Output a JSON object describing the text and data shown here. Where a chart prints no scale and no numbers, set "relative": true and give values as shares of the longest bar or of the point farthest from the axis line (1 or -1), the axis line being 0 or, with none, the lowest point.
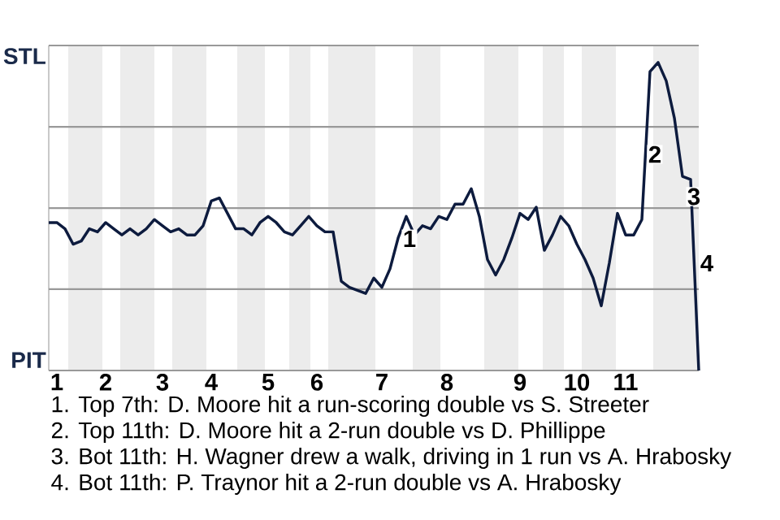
{
  "chart_data": {
    "type": "line",
    "relative": true,
    "categories": [
      null,
      "1",
      null,
      null,
      null,
      null,
      null,
      "2",
      null,
      null,
      null,
      null,
      null,
      null,
      "3",
      null,
      null,
      null,
      null,
      null,
      "4",
      null,
      null,
      null,
      null,
      null,
      null,
      "5",
      null,
      null,
      null,
      null,
      null,
      "6",
      null,
      null,
      null,
      null,
      null,
      null,
      null,
      "7",
      null,
      null,
      null,
      null,
      null,
      null,
      null,
      "8",
      null,
      null,
      null,
      null,
      null,
      null,
      null,
      null,
      "9",
      null,
      null,
      null,
      null,
      null,
      null,
      "10",
      null,
      null,
      null,
      null,
      null,
      "11",
      null,
      null,
      null,
      null,
      null,
      null,
      null,
      null,
      null
    ],
    "series": [
      {
        "color": "#0d1b3e",
        "values": [
          0.48,
          0.48,
          0.46,
          0.41,
          0.42,
          0.46,
          0.45,
          0.48,
          0.46,
          0.44,
          0.46,
          0.44,
          0.46,
          0.49,
          0.47,
          0.45,
          0.46,
          0.44,
          0.44,
          0.47,
          0.55,
          0.56,
          0.51,
          0.46,
          0.46,
          0.44,
          0.48,
          0.5,
          0.48,
          0.45,
          0.44,
          0.47,
          0.5,
          0.47,
          0.45,
          0.45,
          0.29,
          0.27,
          0.26,
          0.25,
          0.3,
          0.27,
          0.33,
          0.43,
          0.5,
          0.44,
          0.47,
          0.46,
          0.5,
          0.49,
          0.54,
          0.54,
          0.59,
          0.5,
          0.36,
          0.31,
          0.36,
          0.43,
          0.51,
          0.49,
          0.53,
          0.39,
          0.44,
          0.5,
          0.47,
          0.41,
          0.36,
          0.3,
          0.21,
          0.35,
          0.51,
          0.44,
          0.44,
          0.49,
          0.97,
          1,
          0.94,
          0.82,
          0.63,
          0.62,
          0
        ]
      }
    ],
    "marker": "none",
    "line_style": "solid",
    "ref_lines": [
      {
        "axis": "y",
        "value": 0,
        "label": "PIT",
        "color": "#999999"
      },
      {
        "axis": "y",
        "value": 0.264,
        "color": "#999999"
      },
      {
        "axis": "y",
        "value": 0.527,
        "color": "#999999"
      },
      {
        "axis": "y",
        "value": 0.791,
        "color": "#999999"
      },
      {
        "axis": "y",
        "value": 1.055,
        "label": "STL",
        "color": "#999999"
      }
    ],
    "annotations": [
      {
        "text": "1"
      },
      {
        "text": "2"
      },
      {
        "text": "3"
      },
      {
        "text": "4"
      },
      "1. Top 7th: D. Moore hit a run-scoring double vs S. Streeter",
      "2. Top 11th: D. Moore hit a 2-run double vs D. Phillippe",
      "3. Bot 11th: H. Wagner drew a walk, driving in 1 run vs A. Hrabosky",
      "4. Bot 11th: P. Traynor hit a 2-run double vs A. Hrabosky"
    ]
  }
}
